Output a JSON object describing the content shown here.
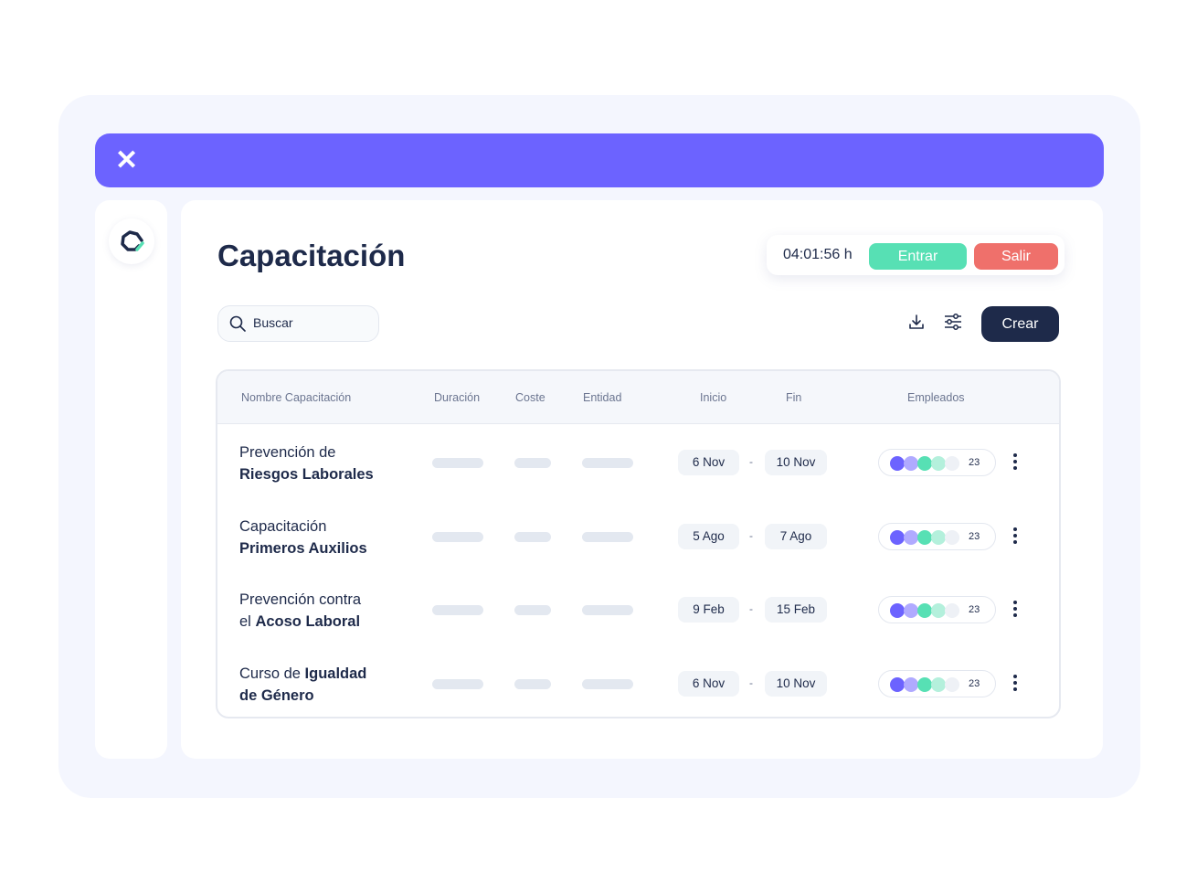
{
  "colors": {
    "brand": "#6c63ff",
    "enter": "#57e0b4",
    "exit": "#ef706b",
    "primary": "#1e2a4a"
  },
  "topbar": {
    "close_icon": "close-icon"
  },
  "page": {
    "title": "Capacitación"
  },
  "clock": {
    "time": "04:01:56 h",
    "enter_label": "Entrar",
    "exit_label": "Salir"
  },
  "toolbar": {
    "search_placeholder": "Buscar",
    "download_icon": "download-icon",
    "filter_icon": "sliders-icon",
    "create_label": "Crear"
  },
  "table": {
    "headers": [
      "Nombre Capacitación",
      "Duración",
      "Coste",
      "Entidad",
      "Inicio",
      "Fin",
      "Empleados"
    ],
    "rows": [
      {
        "l1": "Prevención de",
        "l1b": "",
        "l2": "",
        "l2b": "Riesgos Laborales",
        "start": "6 Nov",
        "end": "10 Nov",
        "employees": "23"
      },
      {
        "l1": "Capacitación",
        "l1b": "",
        "l2": "",
        "l2b": "Primeros Auxilios",
        "start": "5 Ago",
        "end": "7 Ago",
        "employees": "23"
      },
      {
        "l1": "Prevención contra",
        "l1b": "",
        "l2": "el ",
        "l2b": "Acoso Laboral",
        "start": "9 Feb",
        "end": "15 Feb",
        "employees": "23"
      },
      {
        "l1": "Curso de ",
        "l1b": "Igualdad",
        "l2": "",
        "l2b": "de Género",
        "start": "6 Nov",
        "end": "10 Nov",
        "employees": "23"
      }
    ],
    "date_separator": "-",
    "avatar_colors": [
      "#6c63ff",
      "#b0aaff",
      "#57e0b4",
      "#b4f0dc",
      "#eef1f6"
    ]
  }
}
